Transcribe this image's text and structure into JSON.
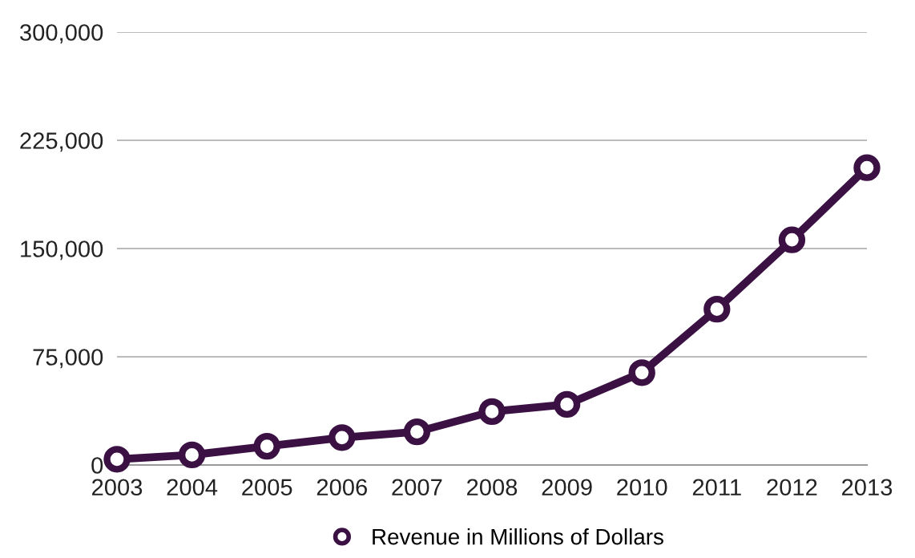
{
  "chart_data": {
    "type": "line",
    "categories": [
      "2003",
      "2004",
      "2005",
      "2006",
      "2007",
      "2008",
      "2009",
      "2010",
      "2011",
      "2012",
      "2013"
    ],
    "series": [
      {
        "name": "Revenue in Millions of Dollars",
        "color": "#3b1144",
        "values": [
          4000,
          7000,
          13000,
          19000,
          23000,
          37000,
          42000,
          64000,
          108000,
          156000,
          206000
        ]
      }
    ],
    "ylim": [
      0,
      300000
    ],
    "yticks": [
      {
        "value": 0,
        "label": "0"
      },
      {
        "value": 75000,
        "label": "75,000"
      },
      {
        "value": 150000,
        "label": "150,000"
      },
      {
        "value": 225000,
        "label": "225,000"
      },
      {
        "value": 300000,
        "label": "300,000"
      }
    ],
    "grid": "y",
    "legend": "bottom",
    "marker": "circle",
    "line_style": "solid"
  }
}
